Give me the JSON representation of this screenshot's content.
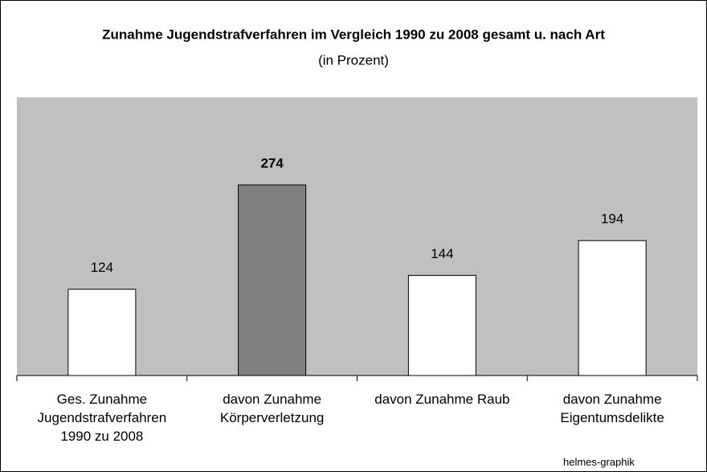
{
  "chart_data": {
    "type": "bar",
    "title": "Zunahme Jugendstrafverfahren im Vergleich 1990 zu 2008 gesamt u. nach Art",
    "subtitle": "(in Prozent)",
    "categories": [
      "Ges. Zunahme Jugendstrafverfahren 1990 zu 2008",
      "davon Zunahme Körperverletzung",
      "davon Zunahme Raub",
      "davon Zunahme Eigentumsdelikte"
    ],
    "values": [
      124,
      274,
      144,
      194
    ],
    "colors": [
      "#ffffff",
      "#808080",
      "#ffffff",
      "#ffffff"
    ],
    "value_label_bold": [
      false,
      true,
      false,
      false
    ],
    "ylim": [
      0,
      400
    ],
    "plot_background": "#c0c0c0",
    "source": "helmes-graphik"
  }
}
